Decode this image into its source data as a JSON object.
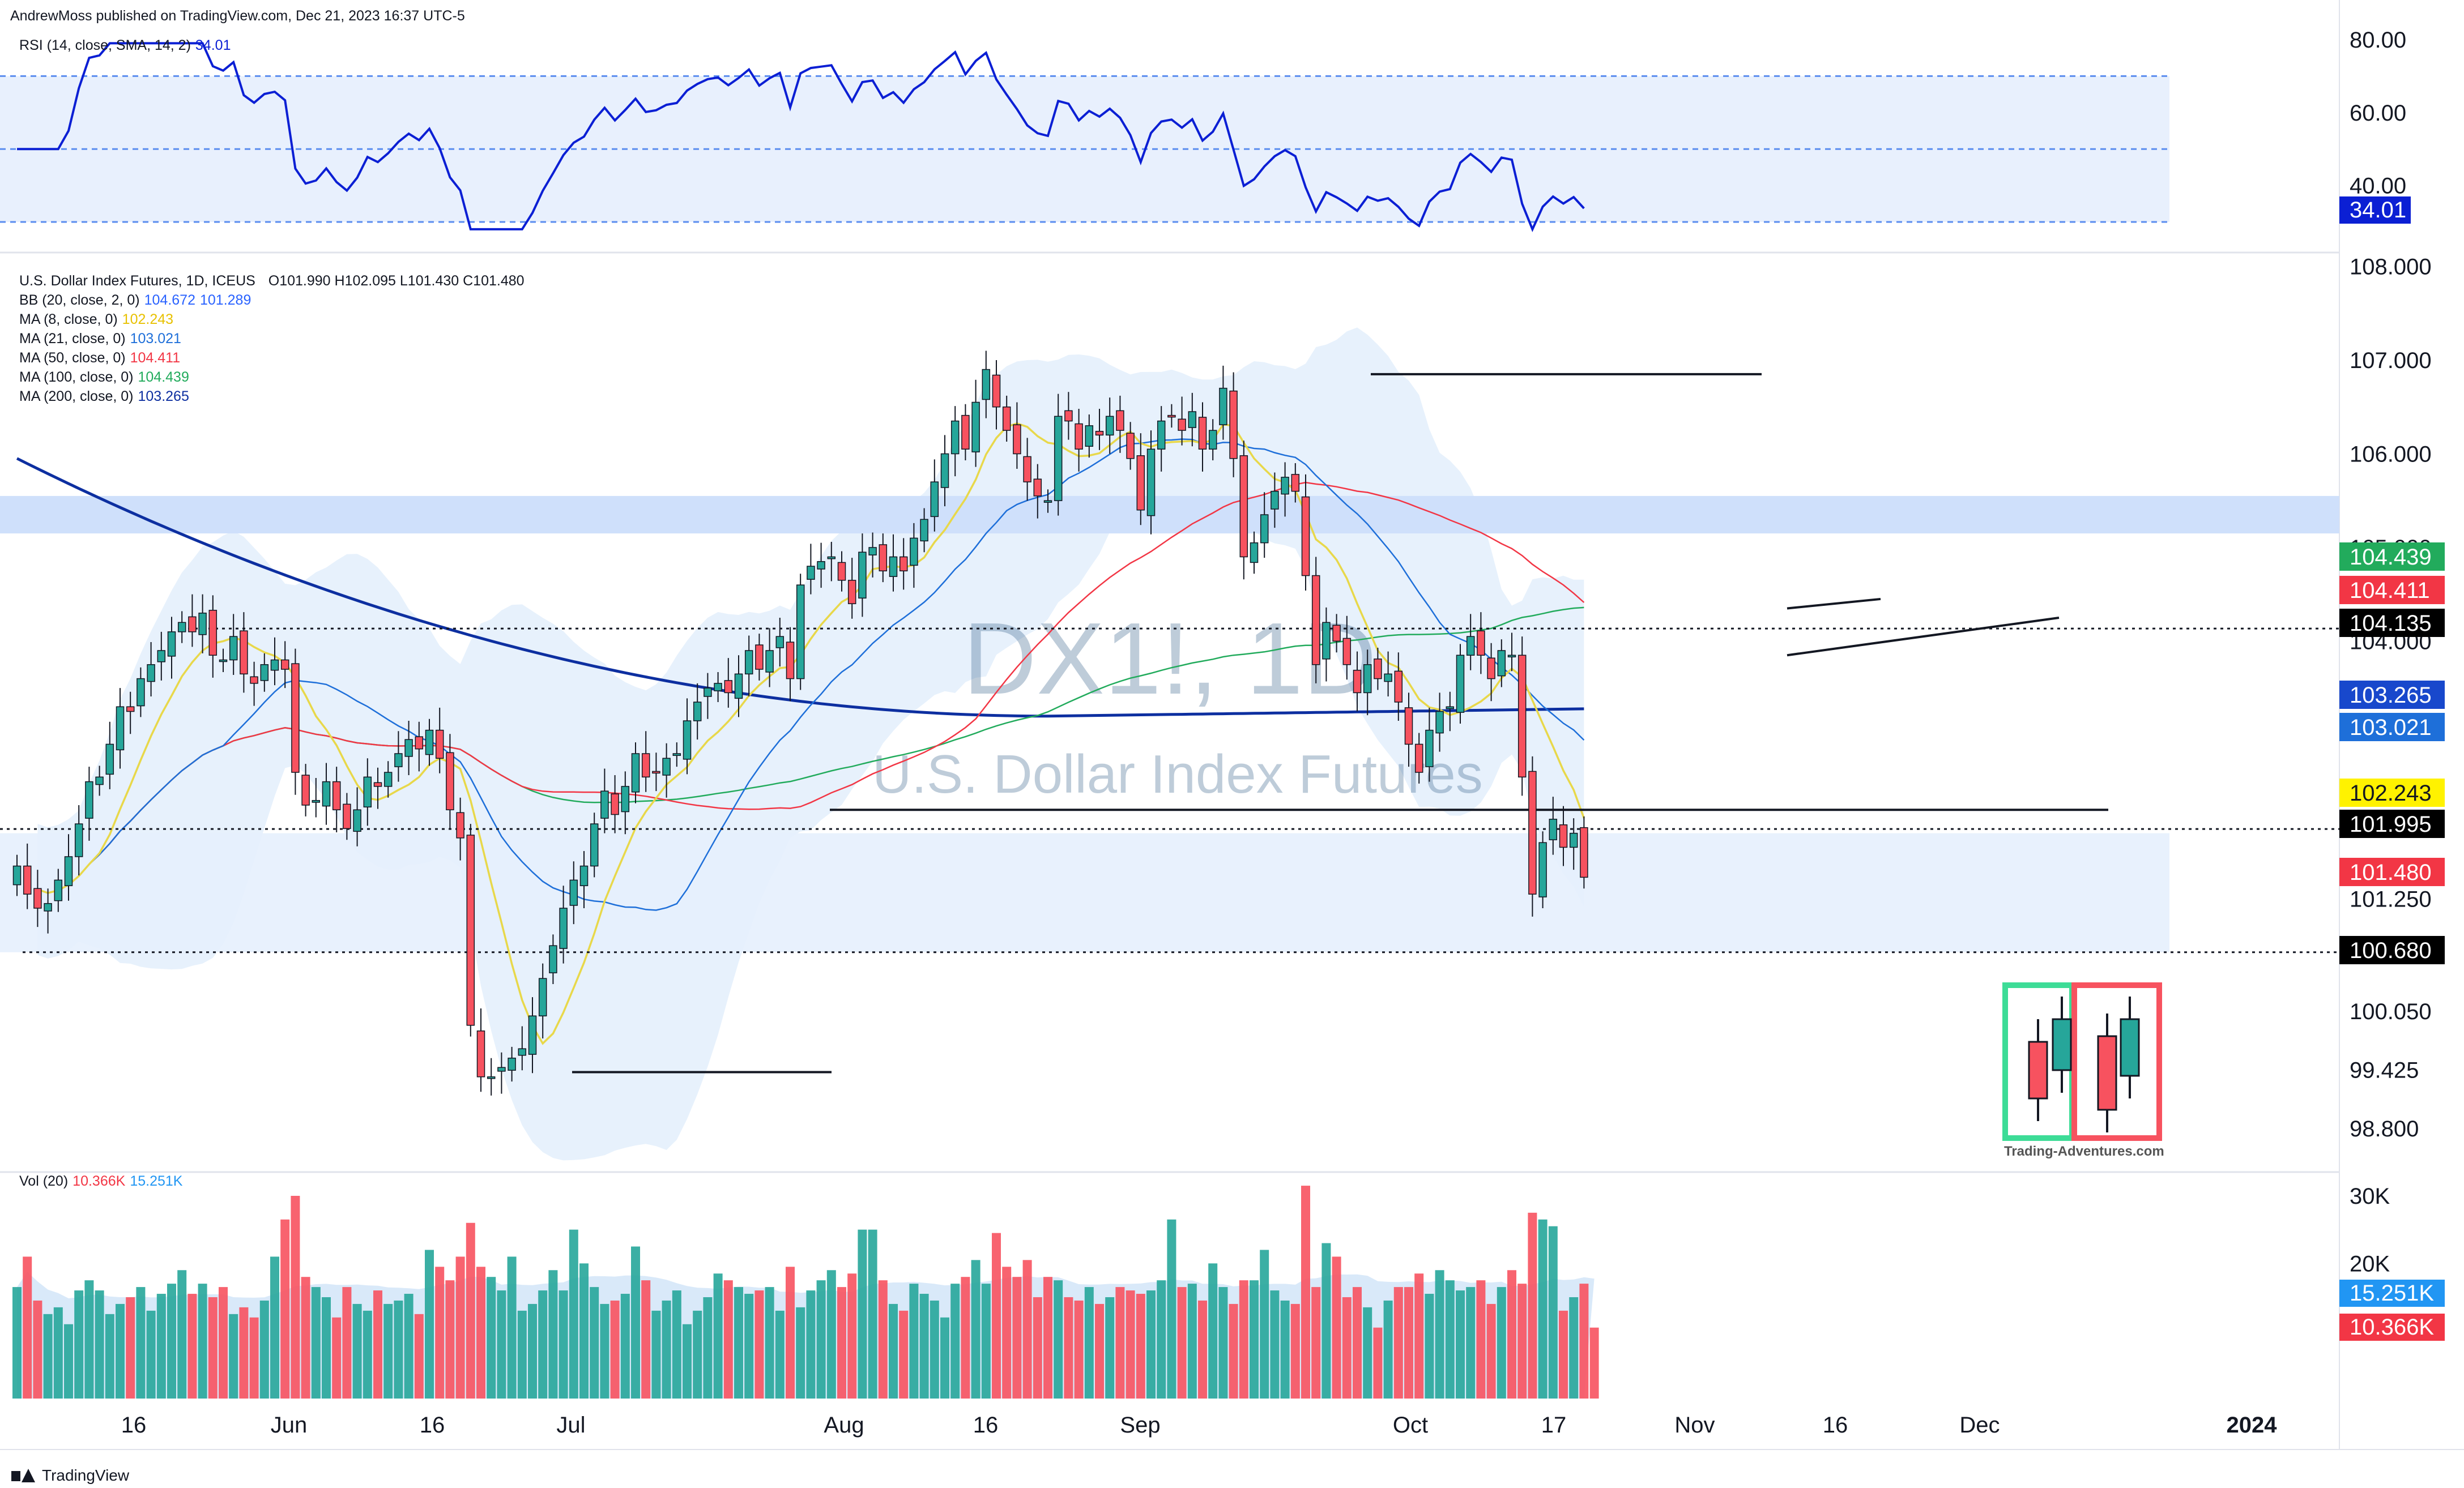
{
  "header": {
    "publish_line": "AndrewMoss published on TradingView.com, Dec 21, 2023 16:37 UTC-5"
  },
  "rsi_legend": {
    "label": "RSI (14, close, SMA, 14, 2)",
    "value": "34.01"
  },
  "price_legend": {
    "symbol_line": "U.S. Dollar Index Futures, 1D, ICEUS",
    "ohlc": "O101.990  H102.095  L101.430  C101.480",
    "indicators": [
      {
        "label": "BB (20, close, 2, 0)",
        "values": [
          "104.672",
          "101.289"
        ],
        "colors": [
          "#2962ff",
          "#2962ff"
        ]
      },
      {
        "label": "MA (8, close, 0)",
        "values": [
          "102.243"
        ],
        "colors": [
          "#e8c100"
        ]
      },
      {
        "label": "MA (21, close, 0)",
        "values": [
          "103.021"
        ],
        "colors": [
          "#1e6fd9"
        ]
      },
      {
        "label": "MA (50, close, 0)",
        "values": [
          "104.411"
        ],
        "colors": [
          "#f23645"
        ]
      },
      {
        "label": "MA (100, close, 0)",
        "values": [
          "104.439"
        ],
        "colors": [
          "#22ab5c"
        ]
      },
      {
        "label": "MA (200, close, 0)",
        "values": [
          "103.265"
        ],
        "colors": [
          "#0d2fa0"
        ]
      }
    ]
  },
  "vol_legend": {
    "label": "Vol (20)",
    "values": [
      "10.366K",
      "15.251K"
    ]
  },
  "watermark": {
    "symbol": "DX1!, 1D",
    "name": "U.S. Dollar Index Futures",
    "logo_caption": "Trading-Adventures.com"
  },
  "footer": {
    "brand": "TradingView"
  },
  "colors": {
    "up": "#26a69a",
    "down": "#f7525f",
    "rsi": "#0b1fd4",
    "bb_fill": "#e3eefc",
    "zone": "#cfe0fb"
  },
  "chart_data": {
    "type": "candlestick",
    "price_axis": {
      "ticks": [
        "108.000",
        "107.000",
        "106.000",
        "105.000",
        "104.000",
        "101.250",
        "100.050",
        "99.425",
        "98.800"
      ],
      "range": [
        98.3,
        108.2
      ]
    },
    "rsi_axis": {
      "ticks": [
        "80.00",
        "60.00",
        "40.00"
      ],
      "range": [
        28,
        84
      ],
      "bands": [
        70,
        50,
        30
      ]
    },
    "volume_axis": {
      "ticks": [
        "30K",
        "20K"
      ],
      "range": [
        0,
        32000
      ]
    },
    "time_axis": [
      "16",
      "Jun",
      "16",
      "Jul",
      "Aug",
      "16",
      "Sep",
      "Oct",
      "17",
      "Nov",
      "16",
      "Dec",
      "2024"
    ],
    "price_labels": [
      {
        "text": "104.439",
        "kind": "ma100"
      },
      {
        "text": "104.411",
        "kind": "ma50"
      },
      {
        "text": "104.135",
        "kind": "level"
      },
      {
        "text": "103.265",
        "kind": "ma200"
      },
      {
        "text": "103.021",
        "kind": "ma21"
      },
      {
        "text": "102.243",
        "kind": "ma8"
      },
      {
        "text": "101.995",
        "kind": "level"
      },
      {
        "text": "101.480",
        "kind": "close"
      },
      {
        "text": "100.680",
        "kind": "level"
      }
    ],
    "rsi_label": "34.01",
    "volume_labels": [
      "15.251K",
      "10.366K"
    ],
    "closes": [
      101.6,
      101.3,
      101.15,
      101.2,
      101.45,
      101.7,
      102.05,
      102.5,
      102.55,
      102.9,
      103.3,
      103.25,
      103.6,
      103.75,
      103.9,
      104.1,
      104.2,
      104.1,
      104.3,
      103.85,
      103.8,
      104.05,
      103.65,
      103.55,
      103.75,
      103.8,
      103.7,
      102.6,
      102.25,
      102.3,
      102.5,
      102.2,
      102.0,
      102.2,
      102.55,
      102.45,
      102.6,
      102.8,
      102.95,
      102.85,
      103.05,
      102.75,
      102.2,
      101.9,
      99.9,
      99.35,
      99.35,
      99.45,
      99.55,
      99.65,
      100.0,
      100.4,
      100.75,
      101.15,
      101.45,
      101.6,
      102.05,
      102.4,
      102.15,
      102.45,
      102.8,
      102.55,
      102.6,
      102.75,
      102.8,
      103.15,
      103.35,
      103.5,
      103.55,
      103.45,
      103.65,
      103.9,
      103.7,
      103.9,
      104.05,
      103.6,
      104.6,
      104.8,
      104.85,
      104.9,
      104.65,
      104.4,
      104.95,
      105.0,
      104.75,
      104.9,
      104.75,
      105.1,
      105.3,
      105.7,
      106.0,
      106.35,
      106.05,
      106.55,
      106.9,
      106.5,
      106.25,
      106.0,
      105.7,
      105.55,
      105.5,
      106.4,
      106.35,
      106.05,
      106.3,
      106.2,
      106.4,
      106.25,
      105.95,
      105.4,
      106.05,
      106.35,
      106.4,
      106.25,
      106.45,
      106.05,
      106.25,
      106.7,
      105.95,
      104.9,
      105.05,
      105.35,
      105.6,
      105.75,
      105.6,
      104.7,
      103.75,
      104.2,
      104.0,
      103.75,
      103.45,
      103.75,
      103.6,
      103.65,
      103.35,
      102.9,
      102.6,
      103.05,
      103.25,
      103.3,
      103.85,
      104.05,
      103.85,
      103.6,
      103.9,
      103.85,
      102.55,
      101.3,
      101.85,
      102.1,
      101.8,
      101.95,
      101.48
    ],
    "volumes": [
      16.5,
      21,
      14.5,
      12.5,
      13.5,
      11,
      16,
      17.5,
      16,
      12.5,
      14,
      15,
      16.5,
      13,
      15.5,
      17,
      19,
      15.5,
      17,
      15,
      16.5,
      12.5,
      13.5,
      12,
      14.5,
      21,
      26.5,
      30,
      18,
      16.5,
      15,
      12,
      16.5,
      14,
      13,
      16,
      14,
      14.5,
      15.5,
      12.5,
      22,
      19.5,
      17.5,
      21,
      26,
      19.5,
      18,
      16,
      21,
      13,
      14,
      16,
      19,
      16,
      25,
      20,
      16.5,
      14,
      14.5,
      15.5,
      22.5,
      17.5,
      13,
      14.5,
      16,
      11,
      13,
      15,
      18.5,
      17.5,
      16.5,
      15.5,
      16,
      16.5,
      13,
      19.5,
      13.5,
      16,
      17.5,
      19,
      16.5,
      18.5,
      25,
      25,
      17.5,
      14,
      13,
      17,
      15.5,
      14.5,
      12,
      17,
      18,
      20.5,
      17,
      24.5,
      19.5,
      18,
      20.5,
      15,
      18,
      17.5,
      15,
      14.5,
      16.5,
      14,
      15,
      16.5,
      16,
      15.5,
      16,
      17.5,
      26.5,
      16.5,
      17,
      14.5,
      20,
      16.5,
      14,
      17.5,
      17.5,
      22,
      16,
      14.5,
      14,
      31.5,
      16.5,
      23,
      21,
      15,
      16.5,
      13.5,
      10.5,
      14.5,
      16.5,
      16.5,
      18.5,
      15.5,
      19,
      17.5,
      16,
      16.5,
      17.5,
      14,
      16.5,
      19,
      17,
      27.5,
      26.5,
      25.5,
      13,
      15,
      17,
      10.5
    ]
  }
}
